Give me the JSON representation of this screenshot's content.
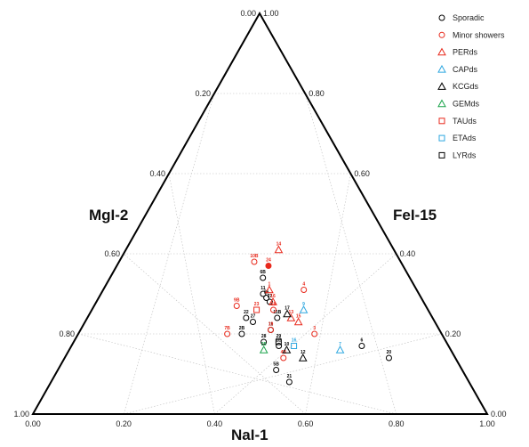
{
  "chart_data": {
    "type": "scatter",
    "subtype": "ternary",
    "axes": {
      "left": "MgI-2",
      "right": "FeI-15",
      "bottom": "NaI-1"
    },
    "grid": true,
    "ticks": {
      "left": [
        "0.00",
        "0.20",
        "0.40",
        "0.60",
        "0.80",
        "1.00"
      ],
      "right": [
        "1.00",
        "0.80",
        "0.60",
        "0.40",
        "0.20",
        "0.00"
      ],
      "bottom": [
        "0.00",
        "0.20",
        "0.40",
        "0.60",
        "0.80",
        "1.00"
      ]
    },
    "legend_position": "top-right",
    "series": [
      {
        "name": "Sporadic",
        "marker": "circle",
        "color": "#000000",
        "points": [
          {
            "label": "6B",
            "x": 0.51,
            "y": 0.66
          },
          {
            "label": "26",
            "x": 0.52,
            "y": 0.71
          },
          {
            "label": "27",
            "x": 0.53,
            "y": 0.72
          },
          {
            "label": "22",
            "x": 0.46,
            "y": 0.76
          },
          {
            "label": "27",
            "x": 0.48,
            "y": 0.77
          },
          {
            "label": "2B",
            "x": 0.45,
            "y": 0.8
          },
          {
            "label": "11",
            "x": 0.51,
            "y": 0.7
          },
          {
            "label": "11B",
            "x": 0.55,
            "y": 0.76
          },
          {
            "label": "11",
            "x": 0.53,
            "y": 0.79
          },
          {
            "label": "28",
            "x": 0.51,
            "y": 0.82
          },
          {
            "label": "1B",
            "x": 0.55,
            "y": 0.83
          },
          {
            "label": "5B",
            "x": 0.54,
            "y": 0.89
          },
          {
            "label": "21",
            "x": 0.57,
            "y": 0.92
          },
          {
            "label": "6",
            "x": 0.77,
            "y": 0.83
          },
          {
            "label": "20",
            "x": 0.83,
            "y": 0.86
          }
        ]
      },
      {
        "name": "Minor showers",
        "marker": "circle",
        "color": "#e8291c",
        "points": [
          {
            "label": "10B",
            "x": 0.48,
            "y": 0.62
          },
          {
            "label": "24",
            "x": 0.53,
            "y": 0.63
          },
          {
            "label": "4",
            "x": 0.64,
            "y": 0.69
          },
          {
            "label": "9B",
            "x": 0.43,
            "y": 0.73
          },
          {
            "label": "7B",
            "x": 0.41,
            "y": 0.8
          },
          {
            "label": "18",
            "x": 0.54,
            "y": 0.74
          },
          {
            "label": "19",
            "x": 0.53,
            "y": 0.79
          },
          {
            "label": "3",
            "x": 0.65,
            "y": 0.8
          },
          {
            "label": "4B",
            "x": 0.56,
            "y": 0.86
          }
        ]
      },
      {
        "name": "PERds",
        "marker": "triangle",
        "color": "#e8291c",
        "points": [
          {
            "label": "14",
            "x": 0.57,
            "y": 0.59
          },
          {
            "label": "1",
            "x": 0.53,
            "y": 0.69
          },
          {
            "label": "16",
            "x": 0.54,
            "y": 0.72
          },
          {
            "label": "13",
            "x": 0.59,
            "y": 0.76
          },
          {
            "label": "15",
            "x": 0.61,
            "y": 0.77
          }
        ]
      },
      {
        "name": "CAPds",
        "marker": "triangle",
        "color": "#2ea7e0",
        "points": [
          {
            "label": "9",
            "x": 0.63,
            "y": 0.74
          },
          {
            "label": "7",
            "x": 0.71,
            "y": 0.84
          }
        ]
      },
      {
        "name": "KCGds",
        "marker": "triangle",
        "color": "#000000",
        "points": [
          {
            "label": "17",
            "x": 0.58,
            "y": 0.75
          },
          {
            "label": "10",
            "x": 0.57,
            "y": 0.84
          },
          {
            "label": "12",
            "x": 0.61,
            "y": 0.86
          }
        ]
      },
      {
        "name": "GEMds",
        "marker": "triangle",
        "color": "#1aa34a",
        "points": [
          {
            "label": "25",
            "x": 0.51,
            "y": 0.84
          }
        ]
      },
      {
        "name": "TAUds",
        "marker": "square",
        "color": "#e8291c",
        "points": [
          {
            "label": "23",
            "x": 0.49,
            "y": 0.74
          }
        ]
      },
      {
        "name": "ETAds",
        "marker": "square",
        "color": "#2ea7e0",
        "points": [
          {
            "label": "16",
            "x": 0.59,
            "y": 0.83
          }
        ]
      },
      {
        "name": "LYRds",
        "marker": "square",
        "color": "#000000",
        "points": [
          {
            "label": "29",
            "x": 0.55,
            "y": 0.82
          }
        ]
      }
    ]
  }
}
